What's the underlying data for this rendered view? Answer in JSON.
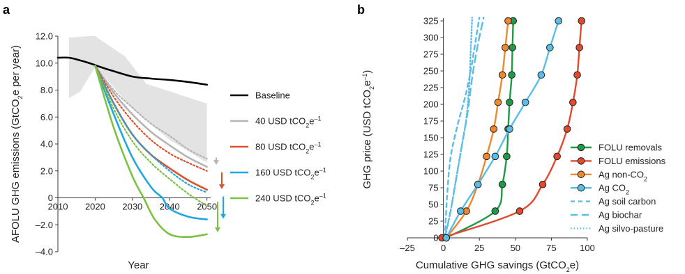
{
  "figure": {
    "panel_a_letter": "a",
    "panel_b_letter": "b"
  },
  "chart_data": [
    {
      "panel": "a",
      "type": "line",
      "xlabel": "Year",
      "ylabel_parts": [
        "AFOLU GHG emissions (GtCO",
        "2",
        "e per year)"
      ],
      "xlim": [
        2010,
        2051
      ],
      "ylim": [
        -4.0,
        12.0
      ],
      "x_ticks": [
        2010,
        2020,
        2030,
        2040,
        2050
      ],
      "y_ticks": [
        -4.0,
        -2.0,
        0,
        2.0,
        4.0,
        6.0,
        8.0,
        10.0,
        12.0
      ],
      "y_tick_labels": [
        "–4.0",
        "–2.0",
        "0",
        "2.0",
        "4.0",
        "6.0",
        "8.0",
        "10.0",
        "12.0"
      ],
      "grid": false,
      "uncertainty_band": {
        "color": "#e3e3e3",
        "upper": [
          [
            2013,
            11.9
          ],
          [
            2018,
            12.0
          ],
          [
            2020,
            12.0
          ],
          [
            2028,
            10.5
          ],
          [
            2035,
            8.0
          ],
          [
            2040,
            7.2
          ],
          [
            2050,
            7.0
          ]
        ],
        "lower": [
          [
            2013,
            7.4
          ],
          [
            2016,
            7.9
          ],
          [
            2020,
            9.7
          ]
        ]
      },
      "series": [
        {
          "name_parts": [
            "Baseline",
            "",
            ""
          ],
          "color": "#000000",
          "style": "solid",
          "width": 2.6,
          "x": [
            2010,
            2013,
            2016,
            2019,
            2021,
            2025,
            2030,
            2035,
            2040,
            2045,
            2050
          ],
          "y": [
            10.4,
            10.4,
            10.2,
            9.95,
            9.75,
            9.4,
            9.0,
            8.85,
            8.75,
            8.6,
            8.4
          ]
        },
        {
          "name_parts": [
            "40 USD tCO",
            "2",
            "e",
            "–1"
          ],
          "color": "#b5b5b5",
          "style": "solid",
          "width": 2.6,
          "x": [
            2020,
            2025,
            2030,
            2035,
            2040,
            2045,
            2050
          ],
          "y": [
            9.8,
            7.8,
            6.2,
            4.9,
            3.9,
            3.0,
            2.3
          ]
        },
        {
          "name_parts": [
            "",
            "",
            "",
            ""
          ],
          "color": "#b5b5b5",
          "style": "dotted",
          "width": 2.2,
          "x": [
            2020,
            2025,
            2030,
            2035,
            2040,
            2045,
            2050
          ],
          "y": [
            9.8,
            8.0,
            6.7,
            5.5,
            4.6,
            3.6,
            2.9
          ]
        },
        {
          "name_parts": [
            "80 USD tCO",
            "2",
            "e",
            "–1"
          ],
          "color": "#d9532b",
          "style": "solid",
          "width": 2.6,
          "x": [
            2020,
            2025,
            2030,
            2035,
            2040,
            2045,
            2050
          ],
          "y": [
            9.8,
            7.0,
            4.7,
            3.2,
            2.2,
            1.3,
            0.6
          ]
        },
        {
          "name_parts": [
            "",
            "",
            "",
            ""
          ],
          "color": "#d9532b",
          "style": "dotted",
          "width": 2.2,
          "x": [
            2020,
            2025,
            2030,
            2035,
            2040,
            2045,
            2050
          ],
          "y": [
            9.8,
            7.5,
            5.7,
            4.3,
            3.3,
            2.6,
            2.0
          ]
        },
        {
          "name_parts": [
            "160 USD tCO",
            "2",
            "e",
            "–1"
          ],
          "color": "#1ea7e1",
          "style": "solid",
          "width": 2.6,
          "x": [
            2020,
            2025,
            2030,
            2035,
            2038,
            2040,
            2045,
            2050
          ],
          "y": [
            9.8,
            6.2,
            3.0,
            0.8,
            0.0,
            -0.8,
            -1.4,
            -1.6
          ]
        },
        {
          "name_parts": [
            "",
            "",
            "",
            ""
          ],
          "color": "#1ea7e1",
          "style": "dotted",
          "width": 2.2,
          "x": [
            2020,
            2025,
            2030,
            2035,
            2040,
            2045,
            2050
          ],
          "y": [
            9.8,
            7.0,
            4.7,
            3.2,
            2.0,
            1.0,
            0.4
          ]
        },
        {
          "name_parts": [
            "240 USD tCO",
            "2",
            "e",
            "–1"
          ],
          "color": "#7cc242",
          "style": "solid",
          "width": 2.6,
          "x": [
            2020,
            2025,
            2030,
            2033,
            2036,
            2040,
            2045,
            2050
          ],
          "y": [
            9.8,
            5.2,
            1.6,
            0.0,
            -1.6,
            -2.7,
            -2.9,
            -2.7
          ]
        },
        {
          "name_parts": [
            "",
            "",
            "",
            ""
          ],
          "color": "#7cc242",
          "style": "dotted",
          "width": 2.2,
          "x": [
            2020,
            2025,
            2030,
            2035,
            2040,
            2045,
            2050
          ],
          "y": [
            9.8,
            6.6,
            4.2,
            2.6,
            1.4,
            0.3,
            -0.6
          ]
        }
      ],
      "arrows": [
        {
          "color": "#b5b5b5",
          "from": 3.0,
          "to": 2.5
        },
        {
          "color": "#d9532b",
          "from": 1.9,
          "to": 0.7
        },
        {
          "color": "#1ea7e1",
          "from": 0.1,
          "to": -1.5
        },
        {
          "color": "#7cc242",
          "from": -0.3,
          "to": -2.5
        }
      ],
      "legend_placement": "right"
    },
    {
      "panel": "b",
      "type": "line",
      "xlabel_parts": [
        "Cumulative GHG savings (GtCO",
        "2",
        "e)"
      ],
      "ylabel_parts": [
        "GHG price (USD tCO",
        "2",
        "e",
        "–1",
        ")"
      ],
      "xlim": [
        -25,
        100
      ],
      "ylim": [
        0,
        325
      ],
      "x_ticks": [
        -25,
        0,
        25,
        50,
        75,
        100
      ],
      "x_tick_labels": [
        "–25",
        "0",
        "25",
        "50",
        "75",
        "100"
      ],
      "y_ticks": [
        0,
        25,
        50,
        75,
        100,
        125,
        150,
        175,
        200,
        225,
        250,
        275,
        300,
        325
      ],
      "grid": false,
      "series": [
        {
          "name_parts": [
            "FOLU removals",
            "",
            ""
          ],
          "color": "#1f9a48",
          "style": "solid",
          "markers": true,
          "points": [
            [
              2,
              0
            ],
            [
              36,
              40
            ],
            [
              41,
              80
            ],
            [
              44,
              122
            ],
            [
              45,
              163
            ],
            [
              46,
              203
            ],
            [
              47.5,
              244
            ],
            [
              48,
              285
            ],
            [
              48.5,
              325
            ]
          ]
        },
        {
          "name_parts": [
            "FOLU emissions",
            "",
            ""
          ],
          "color": "#e2492f",
          "style": "solid",
          "markers": true,
          "points": [
            [
              -1,
              0
            ],
            [
              53,
              40
            ],
            [
              69,
              80
            ],
            [
              79,
              122
            ],
            [
              86,
              163
            ],
            [
              90,
              203
            ],
            [
              93,
              244
            ],
            [
              94.5,
              285
            ],
            [
              96,
              325
            ]
          ]
        },
        {
          "name_parts": [
            "Ag non-CO",
            "2",
            ""
          ],
          "color": "#f0892e",
          "style": "solid",
          "markers": true,
          "points": [
            [
              2,
              0
            ],
            [
              16,
              40
            ],
            [
              24,
              80
            ],
            [
              30,
              122
            ],
            [
              35,
              163
            ],
            [
              38,
              203
            ],
            [
              41,
              244
            ],
            [
              43,
              285
            ],
            [
              45,
              325
            ]
          ]
        },
        {
          "name_parts": [
            "Ag CO",
            "2",
            ""
          ],
          "color": "#5bbde6",
          "style": "solid",
          "markers": true,
          "points": [
            [
              2,
              0
            ],
            [
              12,
              40
            ],
            [
              24,
              80
            ],
            [
              36,
              122
            ],
            [
              46,
              163
            ],
            [
              57,
              203
            ],
            [
              68,
              244
            ],
            [
              74,
              285
            ],
            [
              80,
              325
            ]
          ]
        },
        {
          "name_parts": [
            "Ag soil carbon",
            "",
            ""
          ],
          "color": "#5bbde6",
          "style": "dashed",
          "markers": false,
          "points": [
            [
              1,
              0
            ],
            [
              2.5,
              60
            ],
            [
              5,
              120
            ],
            [
              10,
              170
            ],
            [
              15,
              210
            ],
            [
              19,
              250
            ],
            [
              22,
              290
            ],
            [
              25,
              330
            ]
          ]
        },
        {
          "name_parts": [
            "Ag biochar",
            "",
            ""
          ],
          "color": "#5bbde6",
          "style": "longdash",
          "markers": false,
          "points": [
            [
              1,
              0
            ],
            [
              5,
              40
            ],
            [
              9,
              90
            ],
            [
              13,
              140
            ],
            [
              17,
              190
            ],
            [
              20,
              240
            ],
            [
              24,
              290
            ],
            [
              28,
              330
            ]
          ]
        },
        {
          "name_parts": [
            "Ag silvo-pasture",
            "",
            ""
          ],
          "color": "#5bbde6",
          "style": "dotted",
          "markers": false,
          "points": [
            [
              1,
              0
            ],
            [
              5,
              40
            ],
            [
              9,
              90
            ],
            [
              13,
              140
            ],
            [
              16,
              180
            ],
            [
              18,
              230
            ],
            [
              19,
              280
            ],
            [
              20,
              330
            ]
          ]
        }
      ],
      "legend_placement": "bottom-right"
    }
  ]
}
